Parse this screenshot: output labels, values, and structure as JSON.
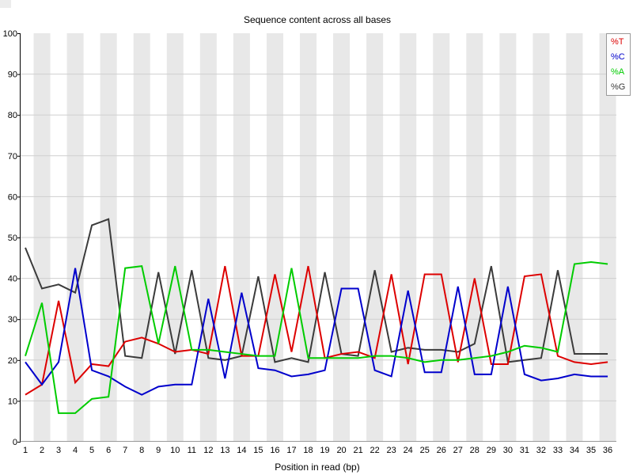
{
  "title": "Sequence content across all bases",
  "colors": {
    "stripe": "#e8e8e8",
    "gridline": "#cfcfcf",
    "axis": "#000000",
    "bottom_edge": "#999999",
    "legend_border": "#9a9a9a",
    "legend_background": "#fdfdfd"
  },
  "chart_data": {
    "type": "line",
    "title": "Sequence content across all bases",
    "xlabel": "Position in read (bp)",
    "ylabel": "",
    "ylim": [
      0,
      100
    ],
    "y_ticks": [
      0,
      10,
      20,
      30,
      40,
      50,
      60,
      70,
      80,
      90,
      100
    ],
    "grid": "horizontal, light gray, every 10",
    "background": "alternating vertical stripes per position",
    "legend_position": "top-right",
    "categories": [
      "1",
      "2",
      "3",
      "4",
      "5",
      "6",
      "7",
      "8",
      "9",
      "10",
      "11",
      "12",
      "13",
      "14",
      "15",
      "16",
      "17",
      "18",
      "19",
      "20",
      "21",
      "22",
      "23",
      "24",
      "25",
      "26",
      "27",
      "28",
      "29",
      "30",
      "31",
      "32",
      "33",
      "34",
      "35",
      "36"
    ],
    "series": [
      {
        "name": "%T",
        "color": "#dd0000",
        "values": [
          11.5,
          14,
          34.5,
          14.5,
          19,
          18.5,
          24.5,
          25.5,
          24,
          22,
          22.5,
          21.5,
          43,
          21,
          21,
          41,
          22,
          43,
          20.5,
          21.5,
          22,
          20.5,
          41,
          19,
          41,
          41,
          19.5,
          40,
          19,
          19,
          40.5,
          41,
          21,
          19.5,
          19,
          19.5
        ]
      },
      {
        "name": "%C",
        "color": "#0000cc",
        "values": [
          19.5,
          14,
          19.5,
          42.5,
          17.5,
          16,
          13.5,
          11.5,
          13.5,
          14,
          14,
          35,
          15.5,
          36.5,
          18,
          17.5,
          16,
          16.5,
          17.5,
          37.5,
          37.5,
          17.5,
          16,
          37,
          17,
          17,
          38,
          16.5,
          16.5,
          38,
          16.5,
          15,
          15.5,
          16.5,
          16,
          16
        ]
      },
      {
        "name": "%A",
        "color": "#00cc00",
        "values": [
          21,
          34,
          7,
          7,
          10.5,
          11,
          42.5,
          43,
          24,
          43,
          22.5,
          22.5,
          22,
          21.5,
          21,
          21,
          42.5,
          20.5,
          20.5,
          20.5,
          20.5,
          21,
          21,
          20.5,
          19.5,
          20,
          20,
          20.5,
          21,
          22,
          23.5,
          23,
          22,
          43.5,
          44,
          43.5
        ]
      },
      {
        "name": "%G",
        "color": "#3b3b3b",
        "values": [
          47.5,
          37.5,
          38.5,
          36.5,
          53,
          54.5,
          21,
          20.5,
          41.5,
          21.5,
          42,
          20.5,
          20,
          21,
          40.5,
          19.5,
          20.5,
          19.5,
          41.5,
          21.5,
          21,
          42,
          22,
          23,
          22.5,
          22.5,
          22,
          24,
          43,
          19.5,
          20,
          20.5,
          42,
          21.5,
          21.5,
          21.5
        ]
      }
    ]
  }
}
